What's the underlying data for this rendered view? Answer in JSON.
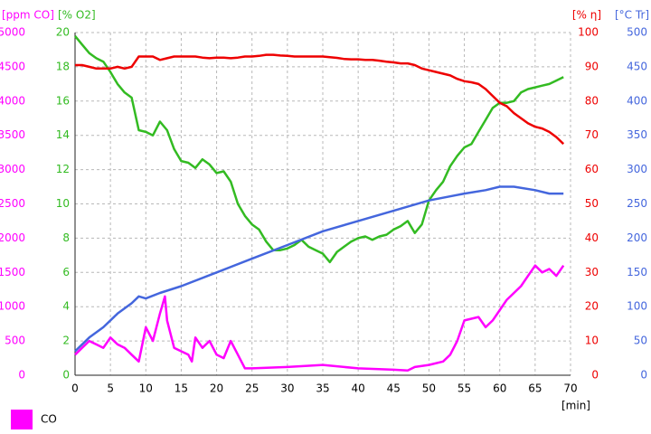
{
  "chart_data": {
    "type": "line",
    "xlabel": "[min]",
    "xlim": [
      0,
      70
    ],
    "xticks": [
      0,
      5,
      10,
      15,
      20,
      25,
      30,
      35,
      40,
      45,
      50,
      55,
      60,
      65,
      70
    ],
    "grid": true,
    "axes": [
      {
        "label": "[ppm CO]",
        "color": "#ff00ff",
        "side": "left",
        "lim": [
          0,
          5000
        ],
        "ticks": [
          0,
          500,
          1000,
          1500,
          2000,
          2500,
          3000,
          3500,
          4000,
          4500,
          5000
        ]
      },
      {
        "label": "[% O2]",
        "color": "#33bb22",
        "side": "left",
        "lim": [
          0,
          20
        ],
        "ticks": [
          0,
          2,
          4,
          6,
          8,
          10,
          12,
          14,
          16,
          18,
          20
        ]
      },
      {
        "label": "[% η]",
        "color": "#ee0000",
        "side": "right",
        "lim": [
          0,
          100
        ],
        "ticks": [
          0,
          10,
          20,
          30,
          40,
          50,
          60,
          70,
          80,
          90,
          100
        ]
      },
      {
        "label": "[°C Tr]",
        "color": "#4466dd",
        "side": "right",
        "lim": [
          0,
          500
        ],
        "ticks": [
          0,
          50,
          100,
          150,
          200,
          250,
          300,
          350,
          400,
          450,
          500
        ]
      }
    ],
    "series": [
      {
        "axis": 1,
        "color": "#33bb22",
        "x": [
          0,
          1,
          2,
          3,
          4,
          5,
          6,
          7,
          8,
          9,
          10,
          11,
          12,
          13,
          14,
          15,
          16,
          17,
          18,
          19,
          20,
          21,
          22,
          23,
          24,
          25,
          26,
          27,
          28,
          29,
          30,
          31,
          32,
          33,
          34,
          35,
          36,
          37,
          38,
          39,
          40,
          41,
          42,
          43,
          44,
          45,
          46,
          47,
          48,
          49,
          50,
          51,
          52,
          53,
          54,
          55,
          56,
          57,
          58,
          59,
          60,
          61,
          62,
          63,
          64,
          65,
          66,
          67,
          68,
          69
        ],
        "values": [
          19.8,
          19.3,
          18.8,
          18.5,
          18.3,
          17.7,
          17.0,
          16.5,
          16.2,
          14.3,
          14.2,
          14.0,
          14.8,
          14.3,
          13.2,
          12.5,
          12.4,
          12.1,
          12.6,
          12.3,
          11.8,
          11.9,
          11.3,
          10.0,
          9.3,
          8.8,
          8.5,
          7.8,
          7.3,
          7.3,
          7.4,
          7.6,
          7.9,
          7.5,
          7.3,
          7.1,
          6.6,
          7.2,
          7.5,
          7.8,
          8.0,
          8.1,
          7.9,
          8.1,
          8.2,
          8.5,
          8.7,
          9.0,
          8.3,
          8.8,
          10.2,
          10.8,
          11.3,
          12.2,
          12.8,
          13.3,
          13.5,
          14.2,
          14.9,
          15.6,
          15.9,
          15.9,
          16.0,
          16.5,
          16.7,
          16.8,
          16.9,
          17.0,
          17.2,
          17.4
        ]
      },
      {
        "axis": 2,
        "color": "#ee0000",
        "x": [
          0,
          1,
          2,
          3,
          4,
          5,
          6,
          7,
          8,
          9,
          10,
          11,
          12,
          13,
          14,
          15,
          16,
          17,
          18,
          19,
          20,
          21,
          22,
          23,
          24,
          25,
          26,
          27,
          28,
          29,
          30,
          31,
          32,
          33,
          34,
          35,
          36,
          37,
          38,
          39,
          40,
          41,
          42,
          43,
          44,
          45,
          46,
          47,
          48,
          49,
          50,
          51,
          52,
          53,
          54,
          55,
          56,
          57,
          58,
          59,
          60,
          61,
          62,
          63,
          64,
          65,
          66,
          67,
          68,
          69
        ],
        "values": [
          90.5,
          90.5,
          90,
          89.5,
          89.5,
          89.5,
          90,
          89.5,
          90,
          93,
          93,
          93,
          92,
          92.5,
          93,
          93,
          93,
          93,
          92.7,
          92.5,
          92.7,
          92.7,
          92.5,
          92.7,
          93,
          93,
          93.2,
          93.5,
          93.5,
          93.3,
          93.2,
          93,
          93,
          93,
          93,
          93,
          92.8,
          92.6,
          92.3,
          92.2,
          92.2,
          92,
          92,
          91.8,
          91.5,
          91.3,
          91,
          91,
          90.5,
          89.5,
          89,
          88.5,
          88,
          87.5,
          86.5,
          85.8,
          85.5,
          85,
          83.5,
          81.5,
          79.5,
          78.5,
          76.5,
          75,
          73.5,
          72.5,
          72,
          71,
          69.5,
          67.5
        ]
      },
      {
        "axis": 3,
        "color": "#4466dd",
        "x": [
          0,
          2,
          4,
          6,
          8,
          9,
          10,
          12,
          15,
          20,
          25,
          30,
          35,
          40,
          45,
          50,
          55,
          58,
          60,
          62,
          65,
          67,
          69
        ],
        "values": [
          35,
          55,
          70,
          90,
          105,
          115,
          112,
          120,
          130,
          150,
          170,
          190,
          210,
          225,
          240,
          255,
          265,
          270,
          275,
          275,
          270,
          265,
          265
        ]
      },
      {
        "name": "CO",
        "axis": 0,
        "color": "#ff00ff",
        "x": [
          0,
          1,
          2,
          3,
          4,
          5,
          6,
          7,
          8,
          9,
          10,
          11,
          12,
          12.7,
          13,
          14,
          15,
          16,
          16.5,
          17,
          18,
          19,
          20,
          21,
          22,
          23,
          24,
          25,
          30,
          35,
          40,
          45,
          47,
          48,
          50,
          52,
          53,
          54,
          55,
          57,
          58,
          59,
          60,
          61,
          63,
          64,
          65,
          66,
          67,
          68,
          69
        ],
        "values": [
          300,
          400,
          500,
          450,
          400,
          550,
          450,
          400,
          300,
          200,
          700,
          500,
          900,
          1150,
          800,
          400,
          350,
          300,
          200,
          550,
          400,
          500,
          300,
          250,
          500,
          300,
          100,
          100,
          120,
          150,
          100,
          80,
          70,
          120,
          150,
          200,
          300,
          500,
          800,
          850,
          700,
          800,
          950,
          1100,
          1300,
          1450,
          1600,
          1500,
          1550,
          1450,
          1600
        ]
      }
    ]
  }
}
